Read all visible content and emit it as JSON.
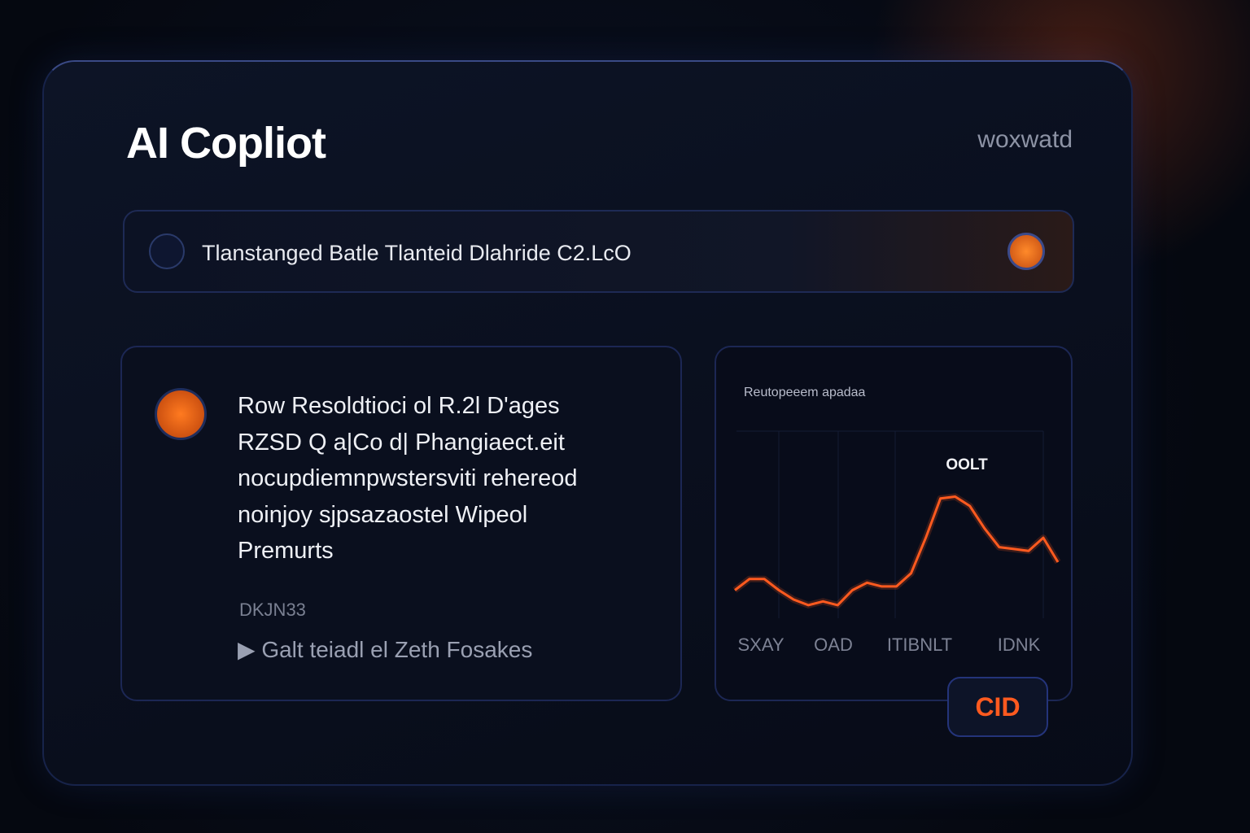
{
  "header": {
    "title": "AI Copliot",
    "right": "woxwatd"
  },
  "search": {
    "text": "Tlanstanged Batle Tlanteid Dlahride C2.LcO"
  },
  "card": {
    "lines": [
      "Row Resoldtioci ol R.2l D'ages",
      "RZSD Q a|Co d| Phangiaect.eit",
      "nocupdiemnpwstersviti rehereod",
      "noinjoy sjpsazaostel Wipeol",
      "Premurts"
    ],
    "meta": "DKJN33",
    "link": "Galt teiadl el Zeth Fosakes"
  },
  "chart_data": {
    "type": "line",
    "title": "Reutopeeem apadaa",
    "annotation": "OOLT",
    "color": "#ff5a1f",
    "values": [
      15,
      21,
      21,
      15,
      10,
      7,
      9,
      7,
      15,
      19,
      17,
      17,
      24,
      43,
      64,
      65,
      60,
      48,
      38,
      37,
      36,
      43,
      30
    ],
    "axis_labels": [
      "SXAY",
      "OAD",
      "ITIBNLT",
      "IDNK"
    ]
  },
  "button": {
    "label": "CID"
  }
}
